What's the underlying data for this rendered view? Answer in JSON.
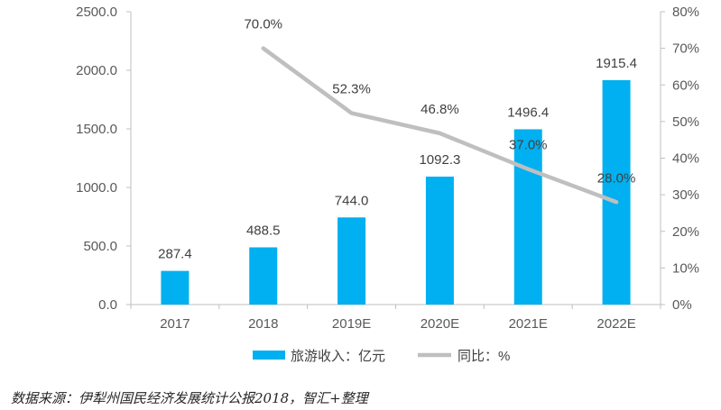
{
  "chart_data": {
    "type": "bar",
    "categories": [
      "2017",
      "2018",
      "2019E",
      "2020E",
      "2021E",
      "2022E"
    ],
    "series": [
      {
        "name": "旅游收入：亿元",
        "kind": "bar",
        "axis": "left",
        "values": [
          287.4,
          488.5,
          744.0,
          1092.3,
          1496.4,
          1915.4
        ],
        "labels": [
          "287.4",
          "488.5",
          "744.0",
          "1092.3",
          "1496.4",
          "1915.4"
        ],
        "color": "#00b0f0"
      },
      {
        "name": "同比：%",
        "kind": "line",
        "axis": "right",
        "values": [
          null,
          70.0,
          52.3,
          46.8,
          37.0,
          28.0
        ],
        "labels": [
          "",
          "70.0%",
          "52.3%",
          "46.8%",
          "37.0%",
          "28.0%"
        ],
        "color": "#bfbfbf"
      }
    ],
    "y_left": {
      "lim": [
        0,
        2500
      ],
      "ticks": [
        "0.0",
        "500.0",
        "1000.0",
        "1500.0",
        "2000.0",
        "2500.0"
      ]
    },
    "y_right": {
      "lim": [
        0,
        80
      ],
      "ticks": [
        "0%",
        "10%",
        "20%",
        "30%",
        "40%",
        "50%",
        "60%",
        "70%",
        "80%"
      ]
    },
    "grid": false,
    "legend_position": "bottom",
    "axis_color": "#bfbfbf"
  },
  "source": "数据来源：伊犁州国民经济发展统计公报2018，智汇+整理"
}
